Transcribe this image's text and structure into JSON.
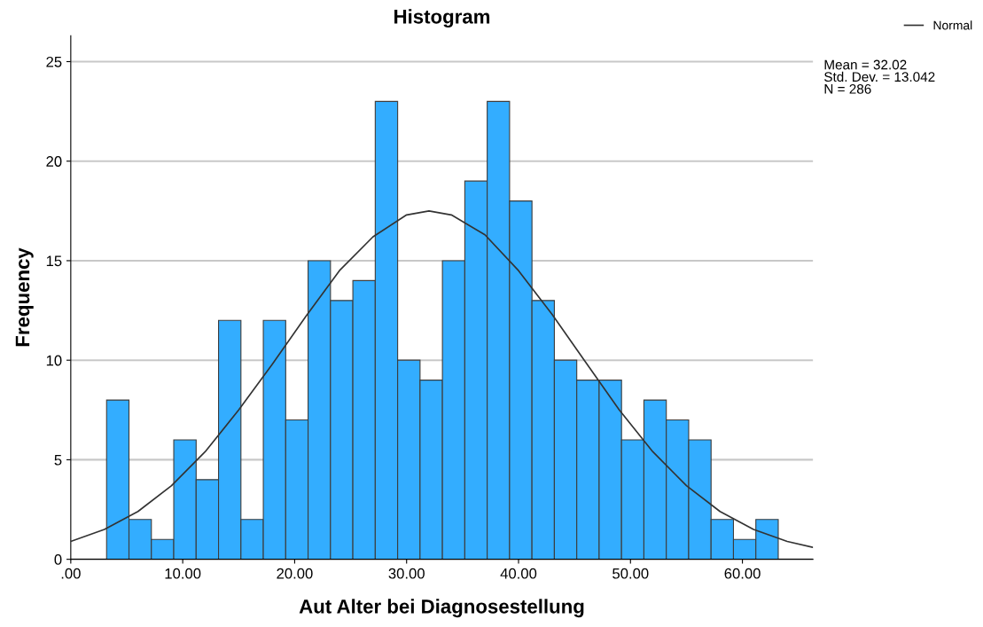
{
  "chart_data": {
    "type": "histogram",
    "title": "Histogram",
    "xlabel": "Aut Alter bei Diagnosestellung",
    "ylabel": "Frequency",
    "bins": [
      3.2,
      5.2,
      7.2,
      9.2,
      11.2,
      13.2,
      15.2,
      17.2,
      19.2,
      21.2,
      23.2,
      25.2,
      27.2,
      29.2,
      31.2,
      33.2,
      35.2,
      37.2,
      39.2,
      41.2,
      43.2,
      45.2,
      47.2,
      49.2,
      51.2,
      53.2,
      55.2,
      57.2,
      59.2,
      61.2,
      63.2
    ],
    "values": [
      8,
      2,
      1,
      6,
      4,
      12,
      2,
      12,
      7,
      15,
      13,
      14,
      23,
      10,
      9,
      15,
      19,
      23,
      18,
      13,
      10,
      9,
      9,
      6,
      8,
      7,
      6,
      2,
      1,
      2
    ],
    "color": "#33adff",
    "series": [
      {
        "type": "line",
        "name": "Normal",
        "color": "#333333",
        "x": [
          0,
          3,
          6,
          9,
          12,
          15,
          18,
          21,
          24,
          27,
          30,
          32,
          34,
          37,
          40,
          43,
          46,
          49,
          52,
          55,
          58,
          61,
          64,
          66.3
        ],
        "values": [
          0.9,
          1.5,
          2.4,
          3.7,
          5.4,
          7.5,
          9.8,
          12.2,
          14.5,
          16.2,
          17.3,
          17.5,
          17.3,
          16.3,
          14.5,
          12.3,
          9.9,
          7.5,
          5.4,
          3.7,
          2.4,
          1.5,
          0.9,
          0.6
        ]
      }
    ],
    "xlim": [
      0,
      66.3
    ],
    "ylim": [
      0,
      26.3
    ],
    "xticks": [
      {
        "value": 0,
        "label": ".00"
      },
      {
        "value": 10,
        "label": "10.00"
      },
      {
        "value": 20,
        "label": "20.00"
      },
      {
        "value": 30,
        "label": "30.00"
      },
      {
        "value": 40,
        "label": "40.00"
      },
      {
        "value": 50,
        "label": "50.00"
      },
      {
        "value": 60,
        "label": "60.00"
      }
    ],
    "yticks": [
      0,
      5,
      10,
      15,
      20,
      25
    ],
    "grid": "y",
    "legend": "top right",
    "annotations": [
      "Mean = 32.02\nStd. Dev. = 13.042\nN = 286"
    ]
  }
}
